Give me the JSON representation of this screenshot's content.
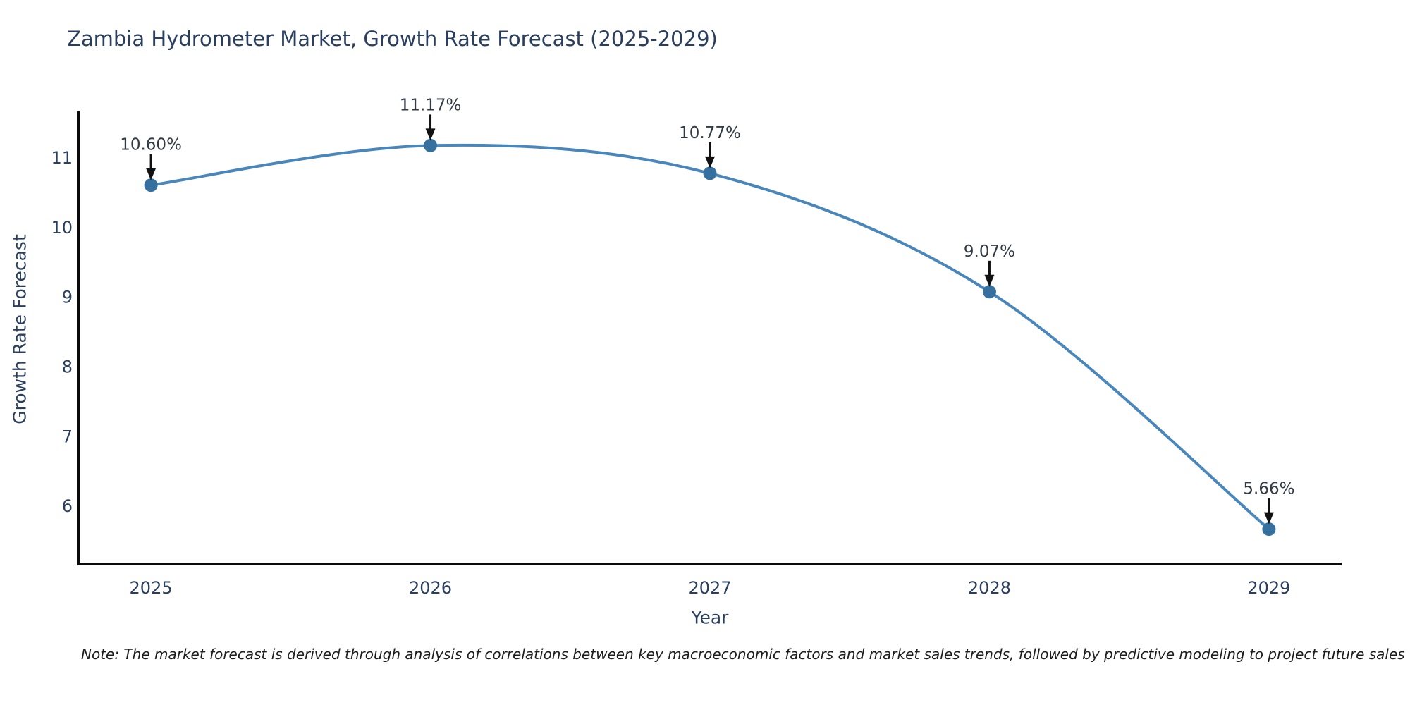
{
  "note": "Note: The market forecast is derived through analysis of correlations between key macroeconomic factors and market sales trends, followed by predictive modeling to project future sales",
  "chart_data": {
    "type": "line",
    "title": "Zambia Hydrometer Market, Growth Rate Forecast (2025-2029)",
    "xlabel": "Year",
    "ylabel": "Growth Rate Forecast",
    "x": [
      2025,
      2026,
      2027,
      2028,
      2029
    ],
    "values": [
      10.6,
      11.17,
      10.77,
      9.07,
      5.66
    ],
    "point_labels": [
      "10.60%",
      "11.17%",
      "10.77%",
      "9.07%",
      "5.66%"
    ],
    "yticks": [
      6,
      7,
      8,
      9,
      10,
      11
    ],
    "xticks": [
      "2025",
      "2026",
      "2027",
      "2028",
      "2029"
    ],
    "ylim": [
      5.16,
      11.66
    ],
    "xlim": [
      2024.74,
      2029.26
    ],
    "line_shape": "spline",
    "grid": false,
    "legend": "none",
    "annotation_style": "value label above point with downward black arrow",
    "colors": {
      "line": "#4886bb",
      "marker": "#35709e",
      "axis": "#0a0a0a",
      "arrow": "#111111",
      "title_text": "#2a3f5f",
      "tick_text": "#2a3f5f",
      "axis_title_text": "#2a3f5f",
      "annotation_text": "#323a45",
      "note_text": "#1c1c1c",
      "background": "#ffffff"
    }
  }
}
